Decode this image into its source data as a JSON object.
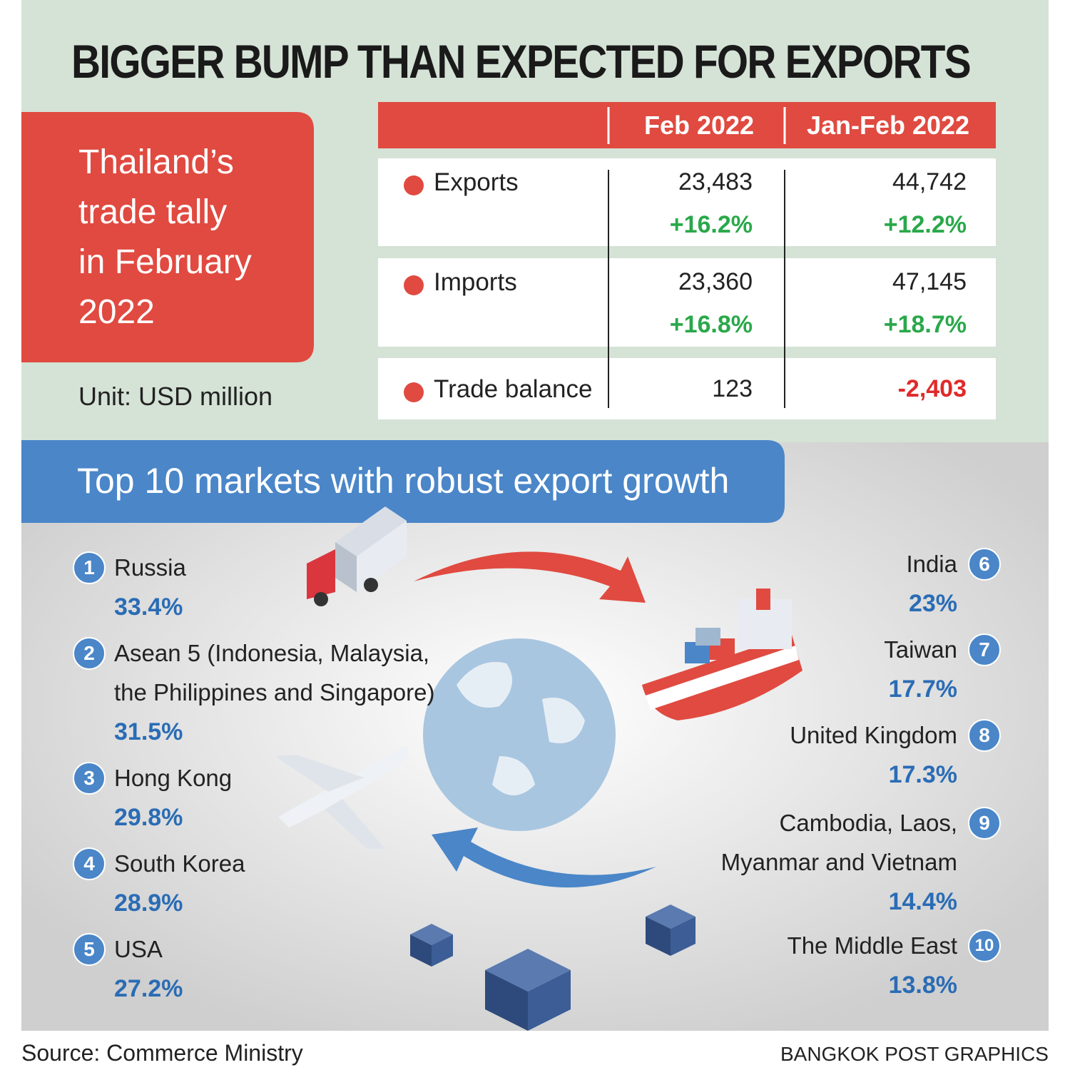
{
  "header": {
    "title": "BIGGER BUMP THAN EXPECTED FOR EXPORTS"
  },
  "tally_box": {
    "lines": [
      "Thailand’s",
      "trade tally",
      "in February",
      "2022"
    ],
    "unit": "Unit: USD million"
  },
  "table": {
    "columns": [
      "Feb 2022",
      "Jan-Feb 2022"
    ],
    "rows": [
      {
        "label": "Exports",
        "feb": {
          "value": "23,483",
          "change": "+16.2%"
        },
        "janfeb": {
          "value": "44,742",
          "change": "+12.2%"
        }
      },
      {
        "label": "Imports",
        "feb": {
          "value": "23,360",
          "change": "+16.8%"
        },
        "janfeb": {
          "value": "47,145",
          "change": "+18.7%"
        }
      },
      {
        "label": "Trade balance",
        "feb": {
          "value": "123"
        },
        "janfeb": {
          "value": "-2,403"
        }
      }
    ]
  },
  "markets": {
    "heading": "Top 10 markets with robust export growth",
    "items": [
      {
        "rank": "1",
        "name": "Russia",
        "growth": "33.4%"
      },
      {
        "rank": "2",
        "name": "Asean 5 (Indonesia, Malaysia, the Philippines and Singapore)",
        "growth": "31.5%"
      },
      {
        "rank": "3",
        "name": "Hong Kong",
        "growth": "29.8%"
      },
      {
        "rank": "4",
        "name": "South Korea",
        "growth": "28.9%"
      },
      {
        "rank": "5",
        "name": "USA",
        "growth": "27.2%"
      },
      {
        "rank": "6",
        "name": "India",
        "growth": "23%"
      },
      {
        "rank": "7",
        "name": "Taiwan",
        "growth": "17.7%"
      },
      {
        "rank": "8",
        "name": "United Kingdom",
        "growth": "17.3%"
      },
      {
        "rank": "9",
        "name": "Cambodia, Laos, Myanmar and Vietnam",
        "growth": "14.4%"
      },
      {
        "rank": "10",
        "name": "The Middle East",
        "growth": "13.8%"
      }
    ]
  },
  "footer": {
    "source": "Source: Commerce Ministry",
    "credit": "BANGKOK POST GRAPHICS"
  }
}
